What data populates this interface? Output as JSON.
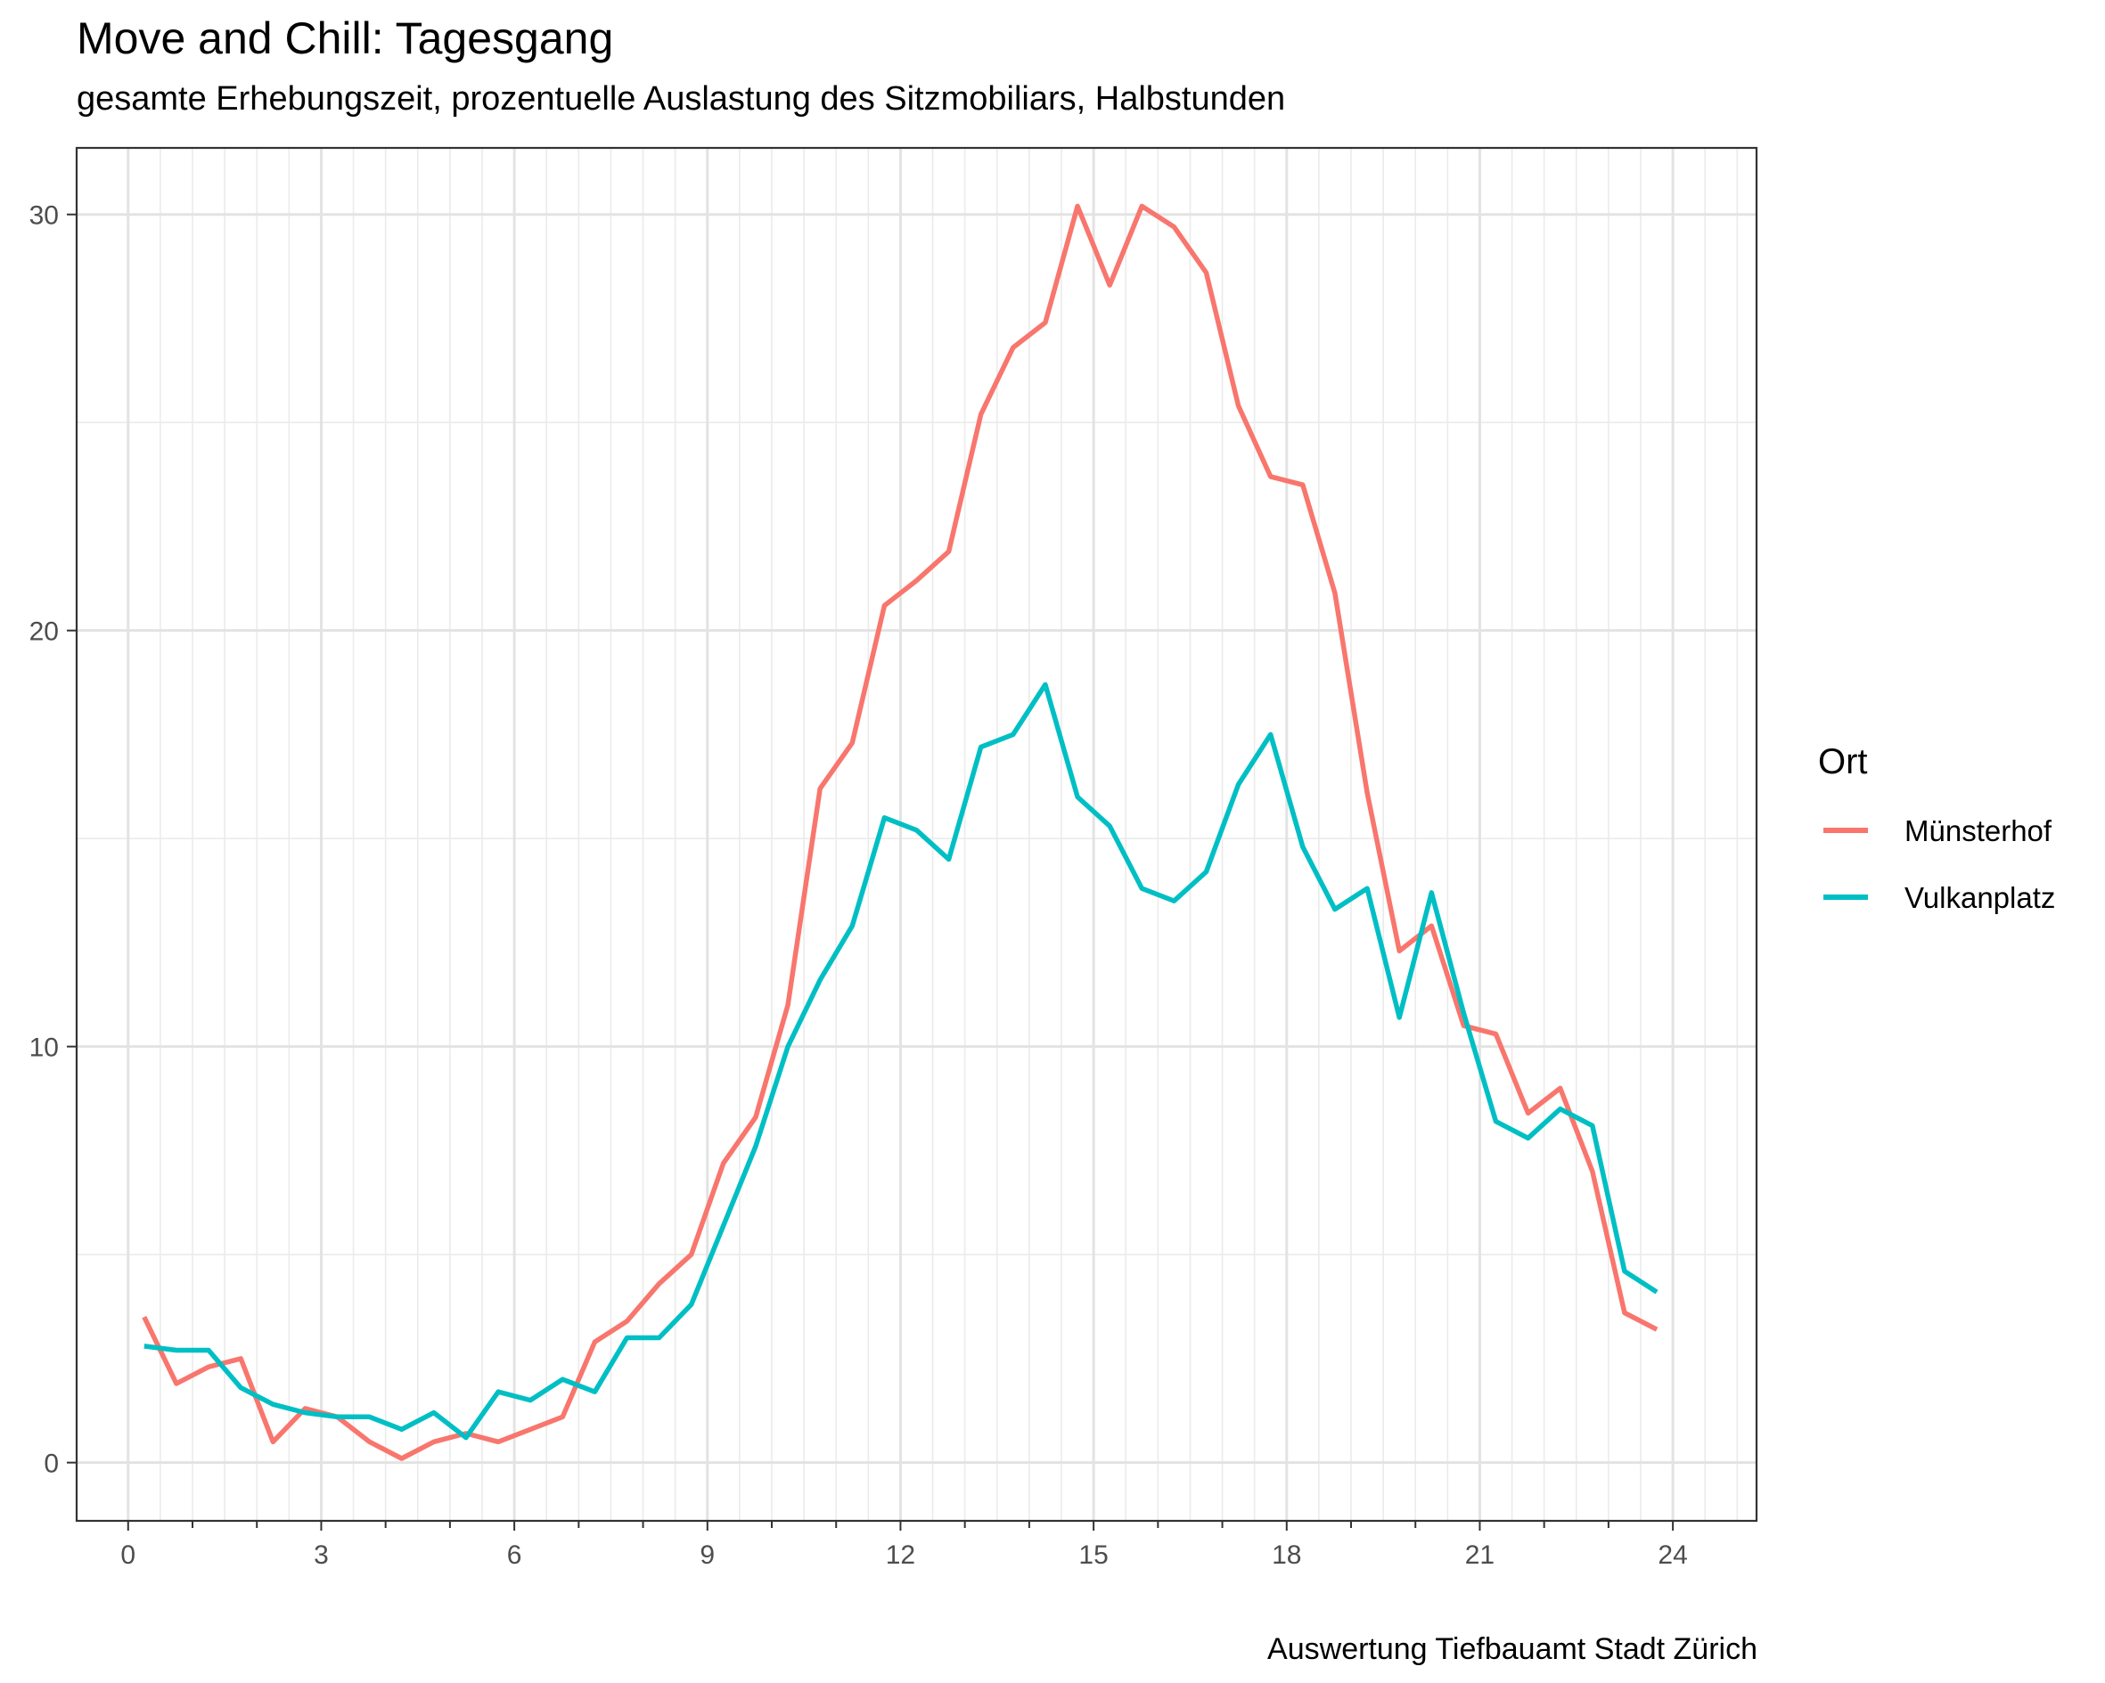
{
  "chart_data": {
    "type": "line",
    "title": "Move and Chill: Tagesgang",
    "subtitle": "gesamte Erhebungszeit, prozentuelle Auslastung des Sitzmobiliars, Halbstunden",
    "caption": "Auswertung Tiefbauamt Stadt Zürich",
    "xlabel": "",
    "ylabel": "",
    "xlim": [
      -0.8,
      25.3
    ],
    "ylim": [
      -1.4,
      31.6
    ],
    "x_ticks": [
      0,
      3,
      6,
      9,
      12,
      15,
      18,
      21,
      24
    ],
    "x_tick_labels": [
      "0",
      "3",
      "6",
      "9",
      "12",
      "15",
      "18",
      "21",
      "24"
    ],
    "y_ticks": [
      0,
      10,
      20,
      30
    ],
    "y_tick_labels": [
      "0",
      "10",
      "20",
      "30"
    ],
    "grid": true,
    "legend_title": "Ort",
    "legend_position": "right",
    "x": [
      0.25,
      0.75,
      1.25,
      1.75,
      2.25,
      2.75,
      3.25,
      3.75,
      4.25,
      4.75,
      5.25,
      5.75,
      6.25,
      6.75,
      7.25,
      7.75,
      8.25,
      8.75,
      9.25,
      9.75,
      10.25,
      10.75,
      11.25,
      11.75,
      12.25,
      12.75,
      13.25,
      13.75,
      14.25,
      14.75,
      15.25,
      15.75,
      16.25,
      16.75,
      17.25,
      17.75,
      18.25,
      18.75,
      19.25,
      19.75,
      20.25,
      20.75,
      21.25,
      21.75,
      22.25,
      22.75,
      23.25,
      23.75
    ],
    "series": [
      {
        "name": "Münsterhof",
        "color": "#F8766D",
        "values": [
          3.5,
          1.9,
          2.3,
          2.5,
          0.5,
          1.3,
          1.1,
          0.5,
          0.1,
          0.5,
          0.7,
          0.5,
          0.8,
          1.1,
          2.9,
          3.4,
          4.3,
          5.0,
          7.2,
          8.3,
          11.0,
          16.2,
          17.3,
          20.6,
          21.2,
          21.9,
          25.2,
          26.8,
          27.4,
          30.2,
          28.3,
          30.2,
          29.7,
          28.6,
          25.4,
          23.7,
          23.5,
          20.9,
          16.1,
          12.3,
          12.9,
          10.5,
          10.3,
          8.4,
          9.0,
          7.0,
          3.6,
          3.2
        ]
      },
      {
        "name": "Vulkanplatz",
        "color": "#00BFC4",
        "values": [
          2.8,
          2.7,
          2.7,
          1.8,
          1.4,
          1.2,
          1.1,
          1.1,
          0.8,
          1.2,
          0.6,
          1.7,
          1.5,
          2.0,
          1.7,
          3.0,
          3.0,
          3.8,
          5.7,
          7.6,
          10.0,
          11.6,
          12.9,
          15.5,
          15.2,
          14.5,
          17.2,
          17.5,
          18.7,
          16.0,
          15.3,
          13.8,
          13.5,
          14.2,
          16.3,
          17.5,
          14.8,
          13.3,
          13.8,
          10.7,
          13.7,
          10.8,
          8.2,
          7.8,
          8.5,
          8.1,
          4.6,
          4.1
        ]
      }
    ]
  }
}
